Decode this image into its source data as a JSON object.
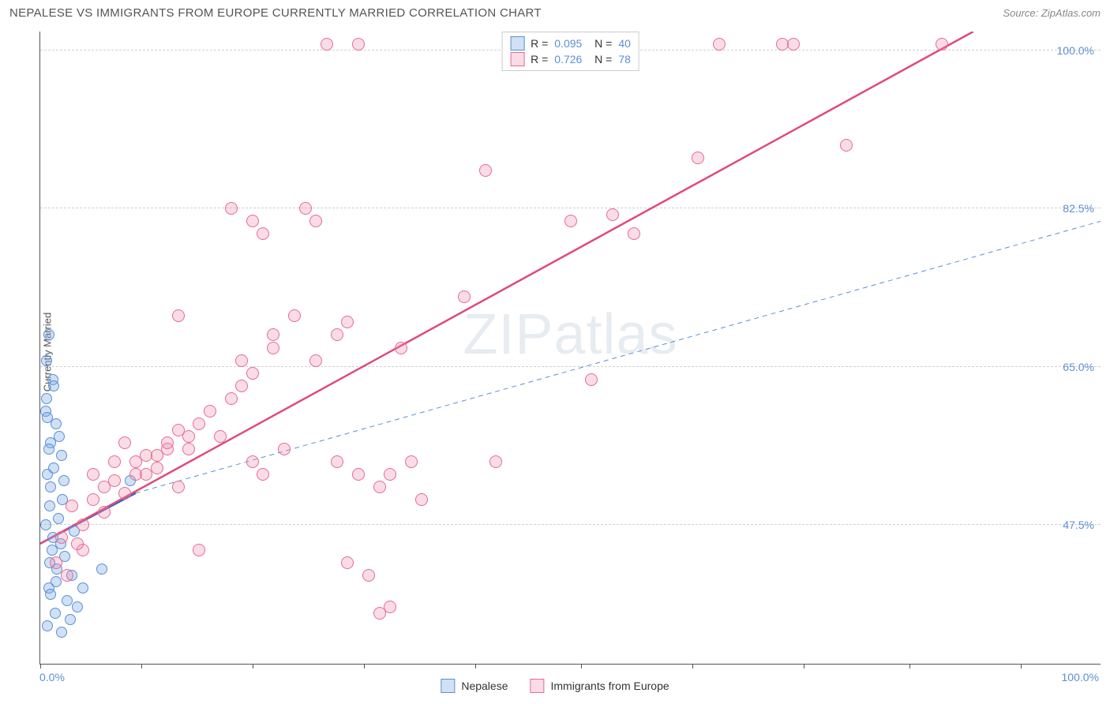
{
  "header": {
    "title": "NEPALESE VS IMMIGRANTS FROM EUROPE CURRENTLY MARRIED CORRELATION CHART",
    "source": "Source: ZipAtlas.com"
  },
  "y_axis": {
    "label": "Currently Married",
    "ticks": [
      {
        "pos_pct": 97,
        "label": "100.0%"
      },
      {
        "pos_pct": 72,
        "label": "82.5%"
      },
      {
        "pos_pct": 47,
        "label": "65.0%"
      },
      {
        "pos_pct": 22,
        "label": "47.5%"
      }
    ]
  },
  "x_axis": {
    "min_label": "0.0%",
    "max_label": "100.0%",
    "tick_positions_pct": [
      0,
      9.5,
      20,
      30.5,
      41,
      51,
      61.5,
      72,
      82,
      92.5
    ]
  },
  "watermark": "ZIPatlas",
  "series": [
    {
      "name": "Nepalese",
      "fill": "rgba(120, 170, 230, 0.35)",
      "stroke": "#5b8fd6",
      "marker_size": 14,
      "r_value": "0.095",
      "n_value": "40",
      "regression": {
        "x1_pct": 0,
        "y1_pct": 19,
        "x2_pct": 9,
        "y2_pct": 27,
        "stroke": "#2563c9",
        "width": 2.5,
        "dash": "none"
      },
      "dashed_extension": {
        "x1_pct": 9,
        "y1_pct": 27,
        "x2_pct": 100,
        "y2_pct": 70,
        "stroke": "#5b8fd6",
        "width": 1,
        "dash": "6,5"
      },
      "points": [
        {
          "x": 0.5,
          "y": 40
        },
        {
          "x": 0.8,
          "y": 52
        },
        {
          "x": 1.0,
          "y": 35
        },
        {
          "x": 1.2,
          "y": 45
        },
        {
          "x": 0.7,
          "y": 30
        },
        {
          "x": 1.5,
          "y": 38
        },
        {
          "x": 1.0,
          "y": 28
        },
        {
          "x": 2.0,
          "y": 33
        },
        {
          "x": 0.6,
          "y": 42
        },
        {
          "x": 1.8,
          "y": 36
        },
        {
          "x": 0.9,
          "y": 25
        },
        {
          "x": 1.3,
          "y": 31
        },
        {
          "x": 0.5,
          "y": 22
        },
        {
          "x": 2.2,
          "y": 29
        },
        {
          "x": 1.1,
          "y": 18
        },
        {
          "x": 1.6,
          "y": 15
        },
        {
          "x": 0.8,
          "y": 12
        },
        {
          "x": 2.5,
          "y": 10
        },
        {
          "x": 1.4,
          "y": 8
        },
        {
          "x": 3.0,
          "y": 14
        },
        {
          "x": 0.7,
          "y": 6
        },
        {
          "x": 2.0,
          "y": 5
        },
        {
          "x": 1.2,
          "y": 20
        },
        {
          "x": 3.5,
          "y": 9
        },
        {
          "x": 0.9,
          "y": 16
        },
        {
          "x": 2.8,
          "y": 7
        },
        {
          "x": 1.7,
          "y": 23
        },
        {
          "x": 0.6,
          "y": 48
        },
        {
          "x": 1.9,
          "y": 19
        },
        {
          "x": 8.5,
          "y": 29
        },
        {
          "x": 1.0,
          "y": 11
        },
        {
          "x": 2.3,
          "y": 17
        },
        {
          "x": 0.8,
          "y": 34
        },
        {
          "x": 1.5,
          "y": 13
        },
        {
          "x": 3.2,
          "y": 21
        },
        {
          "x": 0.7,
          "y": 39
        },
        {
          "x": 2.1,
          "y": 26
        },
        {
          "x": 1.3,
          "y": 44
        },
        {
          "x": 4.0,
          "y": 12
        },
        {
          "x": 5.8,
          "y": 15
        }
      ]
    },
    {
      "name": "Immigrants from Europe",
      "fill": "rgba(240, 140, 170, 0.30)",
      "stroke": "#e76a94",
      "marker_size": 16,
      "r_value": "0.726",
      "n_value": "78",
      "regression": {
        "x1_pct": 0,
        "y1_pct": 19,
        "x2_pct": 88,
        "y2_pct": 100,
        "stroke": "#e04a7a",
        "width": 2.5,
        "dash": "none"
      },
      "points": [
        {
          "x": 2,
          "y": 20
        },
        {
          "x": 3,
          "y": 25
        },
        {
          "x": 4,
          "y": 22
        },
        {
          "x": 5,
          "y": 30
        },
        {
          "x": 6,
          "y": 28
        },
        {
          "x": 7,
          "y": 32
        },
        {
          "x": 4,
          "y": 18
        },
        {
          "x": 8,
          "y": 35
        },
        {
          "x": 5,
          "y": 26
        },
        {
          "x": 9,
          "y": 30
        },
        {
          "x": 6,
          "y": 24
        },
        {
          "x": 10,
          "y": 33
        },
        {
          "x": 7,
          "y": 29
        },
        {
          "x": 11,
          "y": 31
        },
        {
          "x": 8,
          "y": 27
        },
        {
          "x": 12,
          "y": 34
        },
        {
          "x": 9,
          "y": 32
        },
        {
          "x": 13,
          "y": 28
        },
        {
          "x": 10,
          "y": 30
        },
        {
          "x": 14,
          "y": 36
        },
        {
          "x": 11,
          "y": 33
        },
        {
          "x": 15,
          "y": 38
        },
        {
          "x": 12,
          "y": 35
        },
        {
          "x": 16,
          "y": 40
        },
        {
          "x": 13,
          "y": 37
        },
        {
          "x": 17,
          "y": 36
        },
        {
          "x": 14,
          "y": 34
        },
        {
          "x": 18,
          "y": 42
        },
        {
          "x": 15,
          "y": 18
        },
        {
          "x": 19,
          "y": 44
        },
        {
          "x": 18,
          "y": 72
        },
        {
          "x": 20,
          "y": 46
        },
        {
          "x": 19,
          "y": 48
        },
        {
          "x": 21,
          "y": 68
        },
        {
          "x": 20,
          "y": 32
        },
        {
          "x": 22,
          "y": 50
        },
        {
          "x": 21,
          "y": 30
        },
        {
          "x": 23,
          "y": 34
        },
        {
          "x": 22,
          "y": 52
        },
        {
          "x": 24,
          "y": 55
        },
        {
          "x": 25,
          "y": 72
        },
        {
          "x": 26,
          "y": 48
        },
        {
          "x": 27,
          "y": 98
        },
        {
          "x": 28,
          "y": 52
        },
        {
          "x": 29,
          "y": 54
        },
        {
          "x": 30,
          "y": 98
        },
        {
          "x": 28,
          "y": 32
        },
        {
          "x": 29,
          "y": 16
        },
        {
          "x": 30,
          "y": 30
        },
        {
          "x": 31,
          "y": 14
        },
        {
          "x": 32,
          "y": 8
        },
        {
          "x": 33,
          "y": 9
        },
        {
          "x": 32,
          "y": 28
        },
        {
          "x": 33,
          "y": 30
        },
        {
          "x": 34,
          "y": 50
        },
        {
          "x": 35,
          "y": 32
        },
        {
          "x": 36,
          "y": 26
        },
        {
          "x": 40,
          "y": 58
        },
        {
          "x": 42,
          "y": 78
        },
        {
          "x": 43,
          "y": 32
        },
        {
          "x": 46,
          "y": 98
        },
        {
          "x": 50,
          "y": 70
        },
        {
          "x": 52,
          "y": 45
        },
        {
          "x": 54,
          "y": 71
        },
        {
          "x": 55,
          "y": 98
        },
        {
          "x": 56,
          "y": 68
        },
        {
          "x": 62,
          "y": 80
        },
        {
          "x": 64,
          "y": 98
        },
        {
          "x": 70,
          "y": 98
        },
        {
          "x": 71,
          "y": 98
        },
        {
          "x": 76,
          "y": 82
        },
        {
          "x": 85,
          "y": 98
        },
        {
          "x": 13,
          "y": 55
        },
        {
          "x": 20,
          "y": 70
        },
        {
          "x": 26,
          "y": 70
        },
        {
          "x": 1.5,
          "y": 16
        },
        {
          "x": 2.5,
          "y": 14
        },
        {
          "x": 3.5,
          "y": 19
        }
      ]
    }
  ],
  "legend_top": [
    {
      "swatch_fill": "rgba(120,170,230,0.35)",
      "swatch_stroke": "#5b8fd6",
      "r": "0.095",
      "n": "40"
    },
    {
      "swatch_fill": "rgba(240,140,170,0.30)",
      "swatch_stroke": "#e76a94",
      "r": "0.726",
      "n": "78"
    }
  ],
  "legend_bottom": [
    {
      "swatch_fill": "rgba(120,170,230,0.35)",
      "swatch_stroke": "#5b8fd6",
      "label": "Nepalese"
    },
    {
      "swatch_fill": "rgba(240,140,170,0.30)",
      "swatch_stroke": "#e76a94",
      "label": "Immigrants from Europe"
    }
  ],
  "chart": {
    "type": "scatter",
    "background_color": "#ffffff",
    "grid_color": "#d0d0d0",
    "axis_color": "#555555",
    "xlim": [
      0,
      100
    ],
    "ylim": [
      30,
      100
    ]
  }
}
